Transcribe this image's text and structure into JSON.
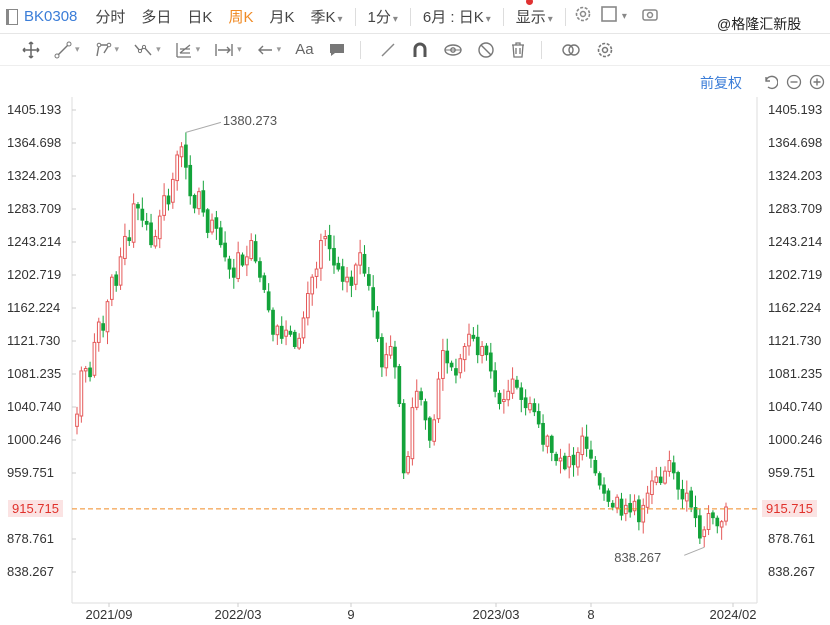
{
  "toolbar": {
    "symbol": "BK0308",
    "timeframes": [
      {
        "label": "分时",
        "active": false
      },
      {
        "label": "多日",
        "active": false
      },
      {
        "label": "日K",
        "active": false
      },
      {
        "label": "周K",
        "active": true
      },
      {
        "label": "月K",
        "active": false
      },
      {
        "label": "季K",
        "active": false
      },
      {
        "label": "1分",
        "active": false
      },
      {
        "label": "6月 : 日K",
        "active": false
      },
      {
        "label": "显示",
        "active": false
      }
    ],
    "watermark": "@格隆汇新股"
  },
  "draw_tools": [
    "move-icon",
    "line-icon",
    "polyline-icon",
    "wave-icon",
    "fib-icon",
    "range-icon",
    "arrow-icon",
    "text-icon",
    "comment-icon",
    "pen-icon",
    "magnet-icon",
    "eye-icon",
    "hide-icon",
    "trash-icon",
    "link-icon",
    "settings-icon"
  ],
  "chart_controls": {
    "adjust_label": "前复权",
    "icons": [
      "undo-icon",
      "zoom-out-icon",
      "zoom-in-icon"
    ]
  },
  "chart_data": {
    "type": "candlestick",
    "y_ticks": [
      1405.193,
      1364.698,
      1324.203,
      1283.709,
      1243.214,
      1202.719,
      1162.224,
      1121.73,
      1081.235,
      1040.74,
      1000.246,
      959.751,
      878.761,
      838.267
    ],
    "current_price": 915.715,
    "max_label": "1380.273",
    "min_label": "838.267",
    "x_labels": [
      "2021/09",
      "2022/03",
      "9",
      "2023/03",
      "8",
      "2024/02"
    ],
    "ylim": [
      820,
      1420
    ],
    "grid": true,
    "colors": {
      "up": "#e55a5a",
      "down": "#13a33a",
      "price_line": "#f08a24"
    },
    "closes": [
      1032,
      1085,
      1088,
      1078,
      1120,
      1145,
      1135,
      1170,
      1200,
      1190,
      1225,
      1250,
      1245,
      1290,
      1285,
      1270,
      1265,
      1240,
      1250,
      1275,
      1300,
      1290,
      1320,
      1350,
      1360,
      1335,
      1300,
      1285,
      1305,
      1280,
      1255,
      1270,
      1260,
      1240,
      1225,
      1210,
      1200,
      1230,
      1215,
      1225,
      1245,
      1220,
      1200,
      1185,
      1160,
      1130,
      1140,
      1125,
      1135,
      1130,
      1115,
      1125,
      1150,
      1180,
      1200,
      1210,
      1245,
      1250,
      1235,
      1215,
      1210,
      1195,
      1200,
      1190,
      1215,
      1230,
      1205,
      1190,
      1160,
      1125,
      1090,
      1105,
      1115,
      1090,
      1045,
      960,
      980,
      1040,
      1060,
      1050,
      1025,
      1000,
      1025,
      1075,
      1110,
      1095,
      1090,
      1080,
      1100,
      1115,
      1130,
      1125,
      1105,
      1115,
      1105,
      1085,
      1060,
      1045,
      1050,
      1060,
      1075,
      1065,
      1050,
      1040,
      1045,
      1035,
      1020,
      995,
      1005,
      985,
      975,
      978,
      965,
      980,
      970,
      985,
      1005,
      990,
      978,
      960,
      945,
      935,
      925,
      918,
      930,
      908,
      920,
      912,
      925,
      900,
      920,
      935,
      950,
      955,
      948,
      962,
      975,
      960,
      940,
      928,
      935,
      918,
      905,
      880,
      890,
      910,
      905,
      895,
      900,
      918
    ]
  }
}
